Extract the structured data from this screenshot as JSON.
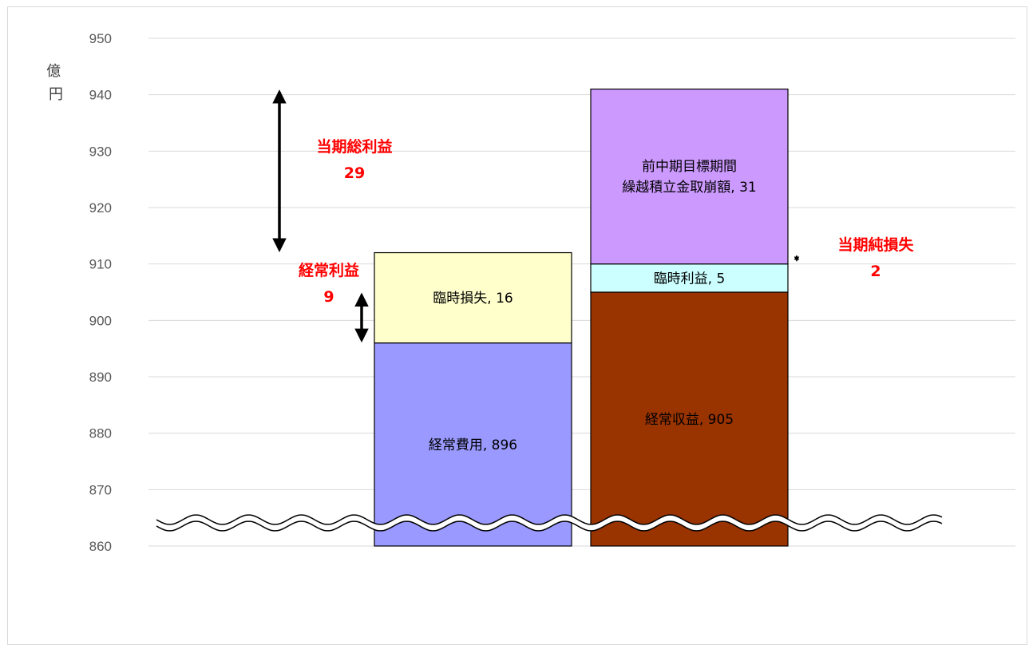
{
  "chart_data": {
    "type": "bar",
    "subtype": "stacked",
    "unit_label": "億円",
    "ylim": [
      860,
      950
    ],
    "y_ticks": [
      860,
      870,
      880,
      890,
      900,
      910,
      920,
      930,
      940,
      950
    ],
    "grid": true,
    "axis_break": true,
    "bars": [
      {
        "segments": [
          {
            "label": "経常費用, 896",
            "value": 896,
            "color": "#9999ff"
          },
          {
            "label": "臨時損失, 16",
            "value": 16,
            "color": "#ffffcc"
          }
        ]
      },
      {
        "segments": [
          {
            "label": "経常収益, 905",
            "value": 905,
            "color": "#993300"
          },
          {
            "label": "臨時利益, 5",
            "value": 5,
            "color": "#ccffff"
          },
          {
            "label_lines": [
              "前中期目標期間",
              "繰越積立金取崩額, 31"
            ],
            "value": 31,
            "color": "#cc99ff"
          }
        ]
      }
    ],
    "annotations": [
      {
        "lines": [
          "当期総利益",
          "29"
        ],
        "value": 29,
        "from": 912,
        "to": 941
      },
      {
        "lines": [
          "経常利益",
          "9"
        ],
        "value": 9,
        "from": 896,
        "to": 905
      },
      {
        "lines": [
          "当期純損失",
          "2"
        ],
        "value": 2,
        "from": 910,
        "to": 912
      }
    ]
  }
}
